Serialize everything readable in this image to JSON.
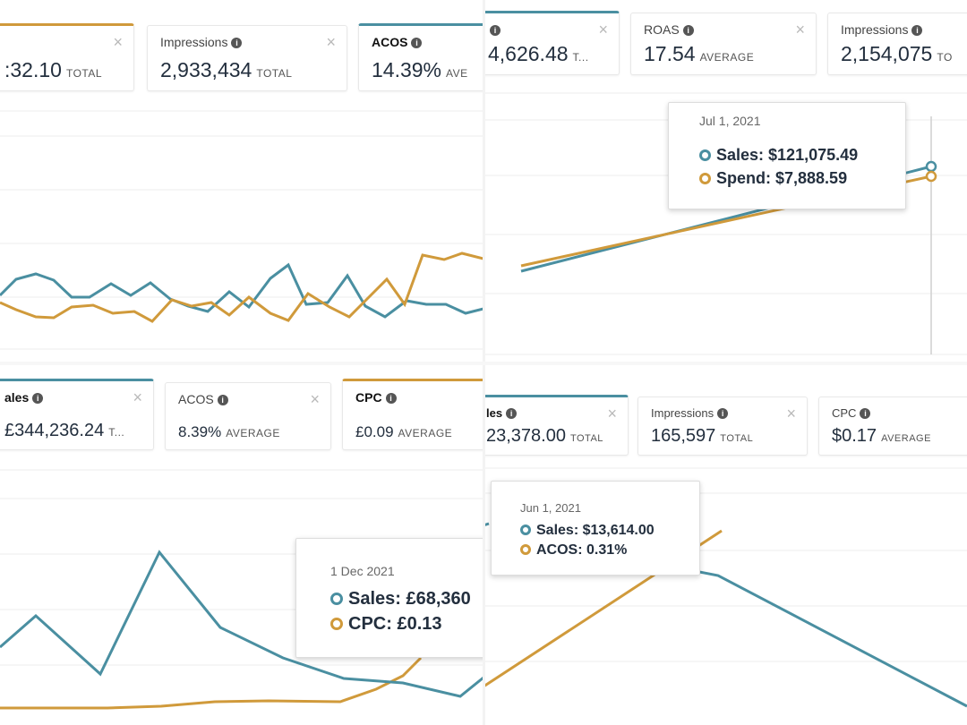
{
  "colors": {
    "teal": "#4a8fa1",
    "orange": "#d09a3b",
    "grid": "#ececec"
  },
  "panel1": {
    "cards": [
      {
        "label": "",
        "value": ":32.10",
        "unit": "TOTAL"
      },
      {
        "label": "Impressions",
        "value": "2,933,434",
        "unit": "TOTAL"
      },
      {
        "label": "ACOS",
        "value": "14.39%",
        "unit": "AVE"
      }
    ]
  },
  "panel2": {
    "cards": [
      {
        "label": "",
        "value": "4,626.48",
        "unit": "T..."
      },
      {
        "label": "ROAS",
        "value": "17.54",
        "unit": "AVERAGE"
      },
      {
        "label": "Impressions",
        "value": "2,154,075",
        "unit": "TO"
      }
    ],
    "tooltip": {
      "date": "Jul 1, 2021",
      "row1": "Sales: $121,075.49",
      "row2": "Spend: $7,888.59"
    }
  },
  "panel3": {
    "cards": [
      {
        "label": "ales",
        "value": "£344,236.24",
        "unit": "T..."
      },
      {
        "label": "ACOS",
        "value": "8.39%",
        "unit": "AVERAGE"
      },
      {
        "label": "CPC",
        "value": "£0.09",
        "unit": "AVERAGE"
      }
    ],
    "tooltip": {
      "date": "1 Dec 2021",
      "row1": "Sales: £68,360",
      "row2": "CPC: £0.13"
    }
  },
  "panel4": {
    "cards": [
      {
        "label": "les",
        "value": "23,378.00",
        "unit": "TOTAL"
      },
      {
        "label": "Impressions",
        "value": "165,597",
        "unit": "TOTAL"
      },
      {
        "label": "CPC",
        "value": "$0.17",
        "unit": "AVERAGE"
      }
    ],
    "tooltip": {
      "date": "Jun 1, 2021",
      "row1": "Sales: $13,614.00",
      "row2": "ACOS: 0.31%"
    }
  }
}
